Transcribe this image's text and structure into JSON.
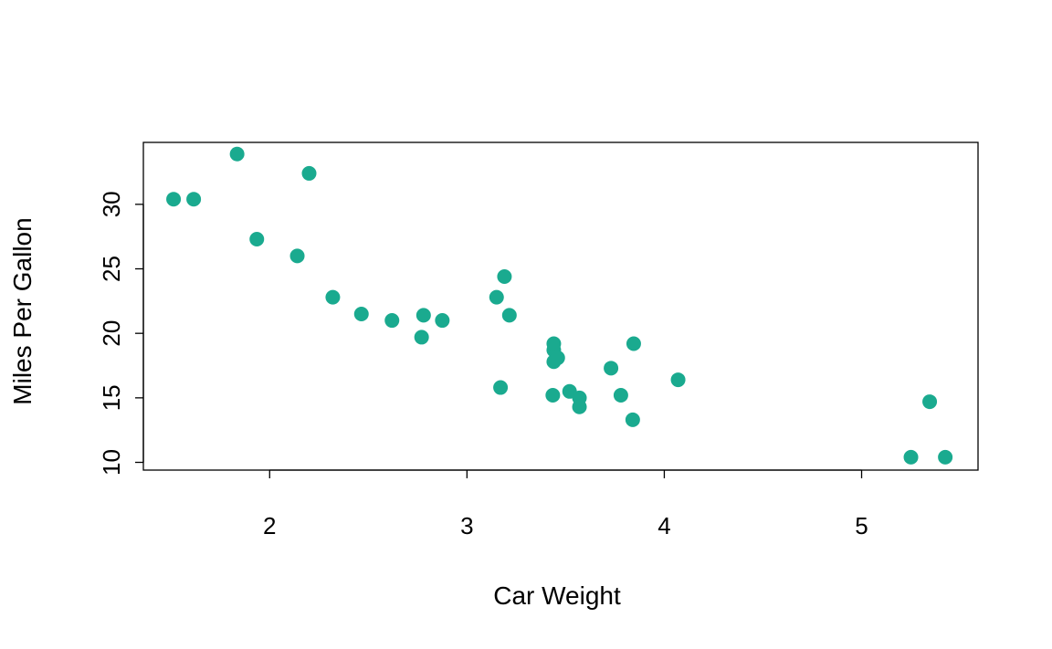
{
  "chart_data": {
    "type": "scatter",
    "title": "",
    "xlabel": "Car Weight",
    "ylabel": "Miles Per Gallon",
    "xlim": [
      1.36,
      5.59
    ],
    "ylim": [
      9.4,
      34.8
    ],
    "x_ticks": [
      2,
      3,
      4,
      5
    ],
    "y_ticks": [
      10,
      15,
      20,
      25,
      30
    ],
    "grid": false,
    "legend": "none",
    "point_color": "#1aaa8f",
    "points": [
      {
        "x": 1.513,
        "y": 30.4
      },
      {
        "x": 1.615,
        "y": 30.4
      },
      {
        "x": 1.835,
        "y": 33.9
      },
      {
        "x": 1.935,
        "y": 27.3
      },
      {
        "x": 2.14,
        "y": 26.0
      },
      {
        "x": 2.2,
        "y": 32.4
      },
      {
        "x": 2.32,
        "y": 22.8
      },
      {
        "x": 2.465,
        "y": 21.5
      },
      {
        "x": 2.62,
        "y": 21.0
      },
      {
        "x": 2.77,
        "y": 19.7
      },
      {
        "x": 2.78,
        "y": 21.4
      },
      {
        "x": 2.875,
        "y": 21.0
      },
      {
        "x": 3.15,
        "y": 22.8
      },
      {
        "x": 3.17,
        "y": 15.8
      },
      {
        "x": 3.19,
        "y": 24.4
      },
      {
        "x": 3.215,
        "y": 21.4
      },
      {
        "x": 3.435,
        "y": 15.2
      },
      {
        "x": 3.44,
        "y": 18.7
      },
      {
        "x": 3.44,
        "y": 19.2
      },
      {
        "x": 3.44,
        "y": 17.8
      },
      {
        "x": 3.46,
        "y": 18.1
      },
      {
        "x": 3.52,
        "y": 15.5
      },
      {
        "x": 3.57,
        "y": 15.0
      },
      {
        "x": 3.57,
        "y": 14.3
      },
      {
        "x": 3.73,
        "y": 17.3
      },
      {
        "x": 3.78,
        "y": 15.2
      },
      {
        "x": 3.84,
        "y": 13.3
      },
      {
        "x": 3.845,
        "y": 19.2
      },
      {
        "x": 4.07,
        "y": 16.4
      },
      {
        "x": 5.25,
        "y": 10.4
      },
      {
        "x": 5.345,
        "y": 14.7
      },
      {
        "x": 5.424,
        "y": 10.4
      }
    ]
  }
}
